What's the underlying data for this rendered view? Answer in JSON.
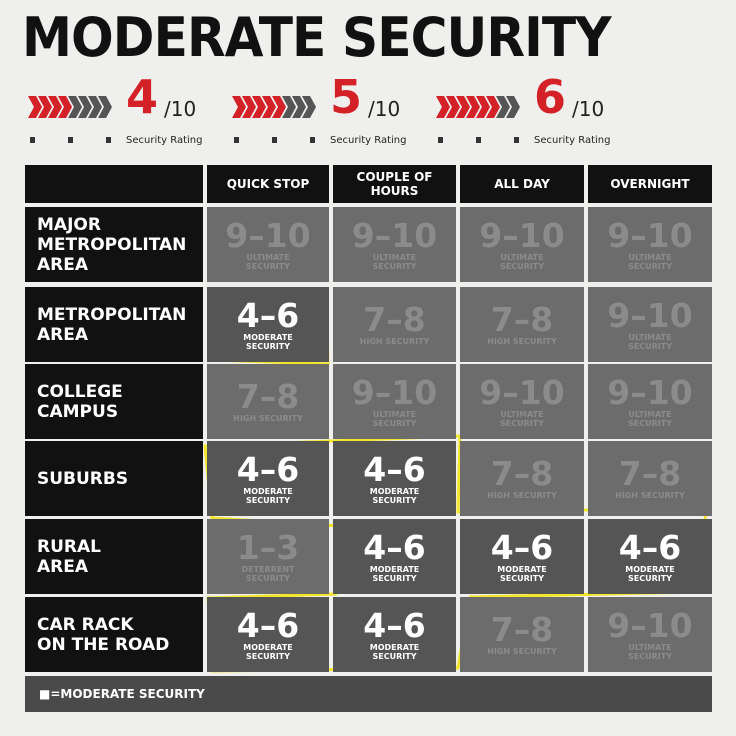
{
  "title": "MODERATE SECURITY",
  "ratings": [
    {
      "score": 4,
      "scale": "/10",
      "label": "Security Rating"
    },
    {
      "score": 5,
      "scale": "/10",
      "label": "Security Rating"
    },
    {
      "score": 6,
      "scale": "/10",
      "label": "Security Rating"
    }
  ],
  "table": {
    "columns": [
      "QUICK STOP",
      "COUPLE OF HOURS",
      "ALL DAY",
      "OVERNIGHT"
    ],
    "rows": [
      {
        "label": "MAJOR\nMETROPOLITAN\nAREA",
        "cells": [
          {
            "range": "9–10",
            "level": "ULTIMATE SECURITY",
            "highlight": false
          },
          {
            "range": "9–10",
            "level": "ULTIMATE SECURITY",
            "highlight": false
          },
          {
            "range": "9–10",
            "level": "ULTIMATE SECURITY",
            "highlight": false
          },
          {
            "range": "9–10",
            "level": "ULTIMATE SECURITY",
            "highlight": false
          }
        ]
      },
      {
        "label": "METROPOLITAN\nAREA",
        "cells": [
          {
            "range": "4–6",
            "level": "MODERATE SECURITY",
            "highlight": true
          },
          {
            "range": "7–8",
            "level": "HIGH SECURITY",
            "highlight": false
          },
          {
            "range": "7–8",
            "level": "HIGH SECURITY",
            "highlight": false
          },
          {
            "range": "9–10",
            "level": "ULTIMATE SECURITY",
            "highlight": false
          }
        ]
      },
      {
        "label": "COLLEGE\nCAMPUS",
        "cells": [
          {
            "range": "7–8",
            "level": "HIGH SECURITY",
            "highlight": false
          },
          {
            "range": "9–10",
            "level": "ULTIMATE SECURITY",
            "highlight": false
          },
          {
            "range": "9–10",
            "level": "ULTIMATE SECURITY",
            "highlight": false
          },
          {
            "range": "9–10",
            "level": "ULTIMATE SECURITY",
            "highlight": false
          }
        ]
      },
      {
        "label": "SUBURBS",
        "cells": [
          {
            "range": "4–6",
            "level": "MODERATE SECURITY",
            "highlight": true
          },
          {
            "range": "4–6",
            "level": "MODERATE SECURITY",
            "highlight": true
          },
          {
            "range": "7–8",
            "level": "HIGH SECURITY",
            "highlight": false
          },
          {
            "range": "7–8",
            "level": "HIGH SECURITY",
            "highlight": false
          }
        ]
      },
      {
        "label": "RURAL\nAREA",
        "cells": [
          {
            "range": "1–3",
            "level": "DETERRENT SECURITY",
            "highlight": false
          },
          {
            "range": "4–6",
            "level": "MODERATE SECURITY",
            "highlight": true
          },
          {
            "range": "4–6",
            "level": "MODERATE SECURITY",
            "highlight": true
          },
          {
            "range": "4–6",
            "level": "MODERATE SECURITY",
            "highlight": true
          }
        ]
      },
      {
        "label": "CAR RACK\nON THE ROAD",
        "cells": [
          {
            "range": "4–6",
            "level": "MODERATE SECURITY",
            "highlight": true
          },
          {
            "range": "4–6",
            "level": "MODERATE SECURITY",
            "highlight": true
          },
          {
            "range": "7–8",
            "level": "HIGH SECURITY",
            "highlight": false
          },
          {
            "range": "9–10",
            "level": "ULTIMATE SECURITY",
            "highlight": false
          }
        ]
      }
    ]
  },
  "legend": "■=MODERATE SECURITY"
}
